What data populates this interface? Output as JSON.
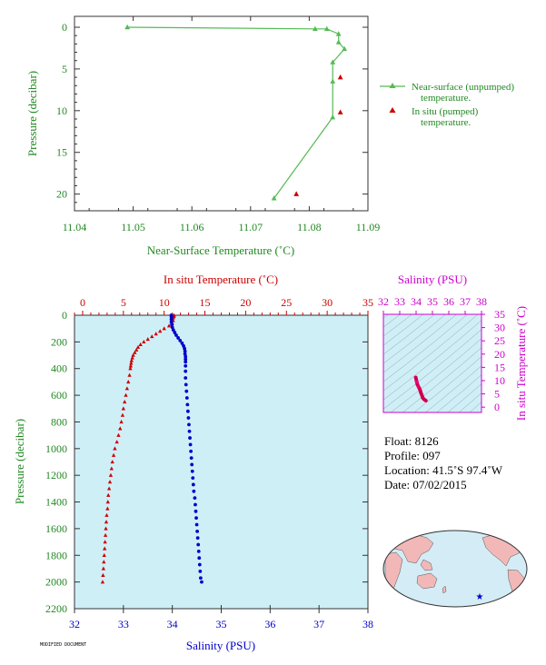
{
  "chart_data": [
    {
      "id": "near-surface",
      "type": "scatter",
      "xlabel": "Near-Surface Temperature (˚C)",
      "ylabel": "Pressure (decibar)",
      "xlim": [
        11.04,
        11.09
      ],
      "ylim": [
        0,
        22
      ],
      "y_inverted": true,
      "x_ticks": [
        "11.04",
        "11.05",
        "11.06",
        "11.07",
        "11.08",
        "11.09"
      ],
      "x_tick_values": [
        11.04,
        11.05,
        11.06,
        11.07,
        11.08,
        11.09
      ],
      "y_ticks": [
        "0",
        "5",
        "10",
        "15",
        "20"
      ],
      "y_tick_values": [
        0,
        5,
        10,
        15,
        20
      ],
      "legend_position": "right",
      "series": [
        {
          "name": "Near-surface (unpumped) temperature.",
          "legend_lines": [
            "Near-surface (unpumped)",
            "temperature."
          ],
          "color": "#55bb55",
          "marker": "triangle-line",
          "points": [
            [
              11.049,
              0.0
            ],
            [
              11.081,
              0.2
            ],
            [
              11.083,
              0.2
            ],
            [
              11.085,
              0.8
            ],
            [
              11.085,
              1.8
            ],
            [
              11.086,
              2.6
            ],
            [
              11.084,
              4.2
            ],
            [
              11.084,
              6.5
            ],
            [
              11.084,
              10.8
            ],
            [
              11.074,
              20.5
            ]
          ]
        },
        {
          "name": "In situ (pumped) temperature.",
          "legend_lines": [
            "In situ (pumped)",
            "temperature."
          ],
          "color": "#cc0000",
          "marker": "triangle",
          "points": [
            [
              11.0853,
              6.0
            ],
            [
              11.0853,
              10.2
            ],
            [
              11.0778,
              20.0
            ]
          ]
        }
      ]
    },
    {
      "id": "profile",
      "type": "scatter",
      "ylabel": "Pressure (decibar)",
      "ylim": [
        0,
        2200
      ],
      "y_inverted": true,
      "y_ticks": [
        "0",
        "200",
        "400",
        "600",
        "800",
        "1000",
        "1200",
        "1400",
        "1600",
        "1800",
        "2000",
        "2200"
      ],
      "y_tick_values": [
        0,
        200,
        400,
        600,
        800,
        1000,
        1200,
        1400,
        1600,
        1800,
        2000,
        2200
      ],
      "top_axis": {
        "label": "In situ Temperature (˚C)",
        "lim": [
          -1,
          35
        ],
        "ticks": [
          "0",
          "5",
          "10",
          "15",
          "20",
          "25",
          "30",
          "35"
        ],
        "tick_values": [
          0,
          5,
          10,
          15,
          20,
          25,
          30,
          35
        ],
        "color": "#cc0000"
      },
      "bottom_axis": {
        "label": "Salinity (PSU)",
        "lim": [
          32,
          38
        ],
        "ticks": [
          "32",
          "33",
          "34",
          "35",
          "36",
          "37",
          "38"
        ],
        "tick_values": [
          32,
          33,
          34,
          35,
          36,
          37,
          38
        ],
        "color": "#0000cc"
      },
      "background": "#cfeff7",
      "series": [
        {
          "name": "Temperature",
          "axis": "top",
          "color": "#cc0000",
          "marker": "triangle",
          "points": [
            [
              11.2,
              0
            ],
            [
              11.2,
              10
            ],
            [
              11.1,
              20
            ],
            [
              11.1,
              40
            ],
            [
              11.0,
              60
            ],
            [
              10.6,
              80
            ],
            [
              10.0,
              100
            ],
            [
              9.5,
              120
            ],
            [
              9.0,
              140
            ],
            [
              8.5,
              160
            ],
            [
              8.0,
              180
            ],
            [
              7.5,
              200
            ],
            [
              7.1,
              220
            ],
            [
              6.8,
              240
            ],
            [
              6.6,
              260
            ],
            [
              6.4,
              280
            ],
            [
              6.2,
              300
            ],
            [
              6.1,
              320
            ],
            [
              6.0,
              340
            ],
            [
              5.95,
              360
            ],
            [
              5.9,
              380
            ],
            [
              5.85,
              400
            ],
            [
              5.75,
              450
            ],
            [
              5.6,
              500
            ],
            [
              5.45,
              550
            ],
            [
              5.3,
              600
            ],
            [
              5.15,
              650
            ],
            [
              5.0,
              700
            ],
            [
              4.9,
              750
            ],
            [
              4.75,
              800
            ],
            [
              4.6,
              850
            ],
            [
              4.4,
              900
            ],
            [
              4.2,
              950
            ],
            [
              3.95,
              1000
            ],
            [
              3.8,
              1050
            ],
            [
              3.65,
              1100
            ],
            [
              3.55,
              1150
            ],
            [
              3.45,
              1200
            ],
            [
              3.35,
              1250
            ],
            [
              3.25,
              1300
            ],
            [
              3.15,
              1350
            ],
            [
              3.1,
              1400
            ],
            [
              3.05,
              1450
            ],
            [
              2.95,
              1500
            ],
            [
              2.9,
              1550
            ],
            [
              2.85,
              1600
            ],
            [
              2.8,
              1650
            ],
            [
              2.75,
              1700
            ],
            [
              2.7,
              1750
            ],
            [
              2.65,
              1800
            ],
            [
              2.6,
              1850
            ],
            [
              2.55,
              1900
            ],
            [
              2.5,
              1950
            ],
            [
              2.45,
              2000
            ]
          ]
        },
        {
          "name": "Salinity",
          "axis": "bottom",
          "color": "#0000cc",
          "marker": "circle",
          "points": [
            [
              33.98,
              0
            ],
            [
              33.98,
              10
            ],
            [
              33.98,
              30
            ],
            [
              33.98,
              50
            ],
            [
              33.99,
              70
            ],
            [
              34.0,
              90
            ],
            [
              34.02,
              110
            ],
            [
              34.05,
              130
            ],
            [
              34.08,
              150
            ],
            [
              34.12,
              170
            ],
            [
              34.16,
              190
            ],
            [
              34.2,
              210
            ],
            [
              34.23,
              230
            ],
            [
              34.25,
              250
            ],
            [
              34.26,
              270
            ],
            [
              34.26,
              290
            ],
            [
              34.27,
              310
            ],
            [
              34.27,
              330
            ],
            [
              34.27,
              350
            ],
            [
              34.27,
              380
            ],
            [
              34.27,
              420
            ],
            [
              34.27,
              470
            ],
            [
              34.28,
              520
            ],
            [
              34.29,
              570
            ],
            [
              34.3,
              620
            ],
            [
              34.31,
              670
            ],
            [
              34.32,
              720
            ],
            [
              34.33,
              770
            ],
            [
              34.34,
              820
            ],
            [
              34.35,
              870
            ],
            [
              34.36,
              920
            ],
            [
              34.37,
              970
            ],
            [
              34.38,
              1020
            ],
            [
              34.39,
              1070
            ],
            [
              34.4,
              1120
            ],
            [
              34.41,
              1170
            ],
            [
              34.42,
              1220
            ],
            [
              34.43,
              1270
            ],
            [
              34.44,
              1320
            ],
            [
              34.46,
              1370
            ],
            [
              34.47,
              1420
            ],
            [
              34.48,
              1470
            ],
            [
              34.49,
              1520
            ],
            [
              34.5,
              1570
            ],
            [
              34.51,
              1620
            ],
            [
              34.52,
              1670
            ],
            [
              34.53,
              1720
            ],
            [
              34.54,
              1770
            ],
            [
              34.55,
              1820
            ],
            [
              34.56,
              1870
            ],
            [
              34.57,
              1920
            ],
            [
              34.58,
              1970
            ],
            [
              34.6,
              2000
            ]
          ]
        }
      ]
    },
    {
      "id": "ts-diagram",
      "type": "scatter",
      "xlabel": "Salinity (PSU)",
      "ylabel": "In situ Temperature (˚C)",
      "xlim": [
        32,
        38
      ],
      "ylim": [
        -2,
        35
      ],
      "x_ticks": [
        "32",
        "33",
        "34",
        "35",
        "36",
        "37",
        "38"
      ],
      "x_tick_values": [
        32,
        33,
        34,
        35,
        36,
        37,
        38
      ],
      "y_ticks": [
        "0",
        "5",
        "10",
        "15",
        "20",
        "25",
        "30",
        "35"
      ],
      "y_tick_values": [
        0,
        5,
        10,
        15,
        20,
        25,
        30,
        35
      ],
      "color": "#cc00cc",
      "series": [
        {
          "name": "T-S",
          "color": "#ee0077",
          "points": [
            [
              33.98,
              11.2
            ],
            [
              34.0,
              10.6
            ],
            [
              34.08,
              8.5
            ],
            [
              34.2,
              7.1
            ],
            [
              34.26,
              6.2
            ],
            [
              34.27,
              5.9
            ],
            [
              34.28,
              5.6
            ],
            [
              34.3,
              5.3
            ],
            [
              34.33,
              4.9
            ],
            [
              34.36,
              4.4
            ],
            [
              34.39,
              3.8
            ],
            [
              34.42,
              3.4
            ],
            [
              34.46,
              3.1
            ],
            [
              34.5,
              2.9
            ],
            [
              34.54,
              2.7
            ],
            [
              34.58,
              2.5
            ],
            [
              34.6,
              2.45
            ]
          ]
        }
      ]
    },
    {
      "id": "location-map",
      "type": "map",
      "marker_color": "#0000cc",
      "marker_lat": -41.5,
      "marker_lon": -97.4
    }
  ],
  "info": {
    "float_label": "Float:",
    "float_value": "8126",
    "profile_label": "Profile:",
    "profile_value": "097",
    "location_label": "Location:",
    "location_value": "41.5˚S  97.4˚W",
    "date_label": "Date:",
    "date_value": "07/02/2015"
  },
  "stamp": "MODIFIED DOCUMENT"
}
